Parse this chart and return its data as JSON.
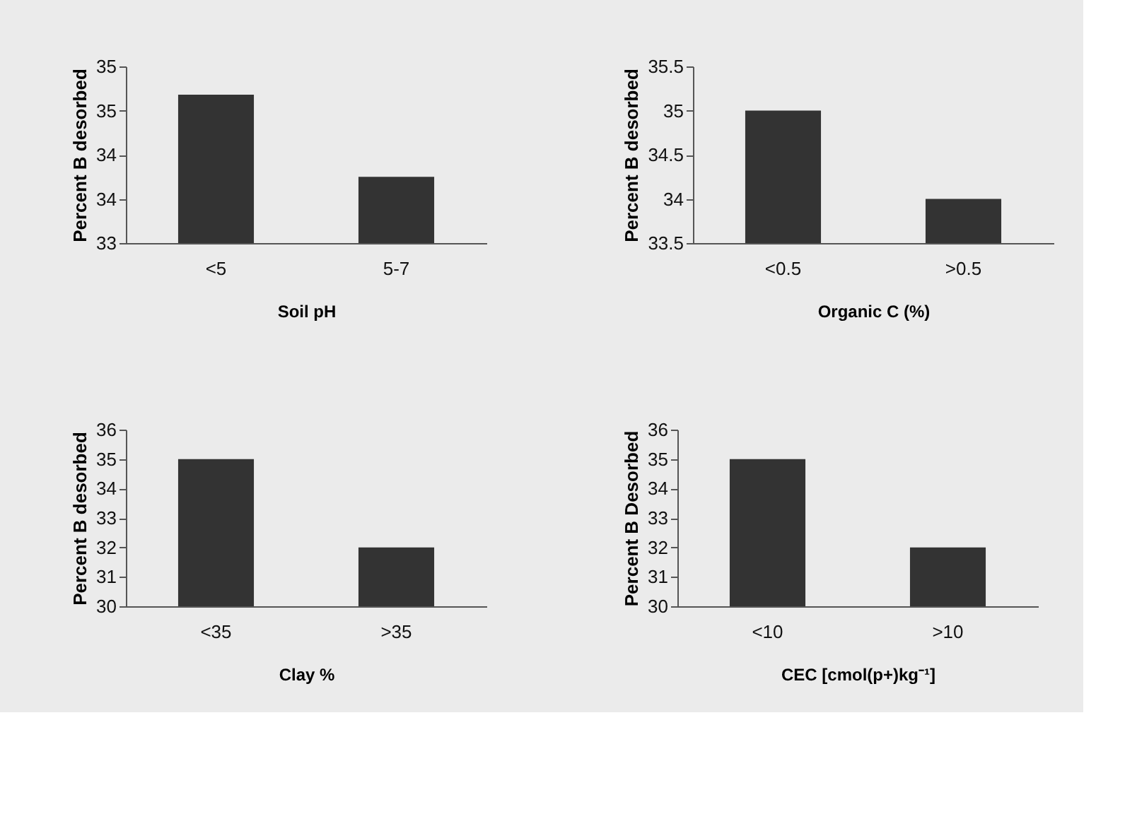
{
  "chart_data": [
    {
      "type": "bar",
      "categories": [
        "<5",
        "5-7"
      ],
      "values": [
        34.68,
        33.75
      ],
      "color": "#333333",
      "xlabel": "Soil pH",
      "ylabel": "Percent B desorbed",
      "ylim": [
        33,
        35
      ],
      "yticks": [
        33,
        {
          "value": 33.5,
          "label": "34"
        },
        34,
        {
          "value": 34.5,
          "label": "35"
        },
        35
      ],
      "grid": false
    },
    {
      "type": "bar",
      "categories": [
        "<0.5",
        ">0.5"
      ],
      "values": [
        35,
        34
      ],
      "color": "#333333",
      "xlabel": "Organic C (%)",
      "ylabel": "Percent B desorbed",
      "ylim": [
        33.5,
        35.5
      ],
      "yticks": [
        33.5,
        34,
        34.5,
        35,
        35.5
      ],
      "grid": false
    },
    {
      "type": "bar",
      "categories": [
        "<35",
        ">35"
      ],
      "values": [
        35,
        32
      ],
      "color": "#333333",
      "xlabel": "Clay %",
      "ylabel": "Percent B desorbed",
      "ylim": [
        30,
        36
      ],
      "yticks": [
        30,
        31,
        32,
        33,
        34,
        35,
        36
      ],
      "grid": false
    },
    {
      "type": "bar",
      "categories": [
        "<10",
        ">10"
      ],
      "values": [
        35,
        32
      ],
      "color": "#333333",
      "xlabel": "CEC [cmol(p+)kg⁻¹]",
      "ylabel": "Percent B Desorbed",
      "ylim": [
        30,
        36
      ],
      "yticks": [
        30,
        31,
        32,
        33,
        34,
        35,
        36
      ],
      "grid": false
    }
  ]
}
